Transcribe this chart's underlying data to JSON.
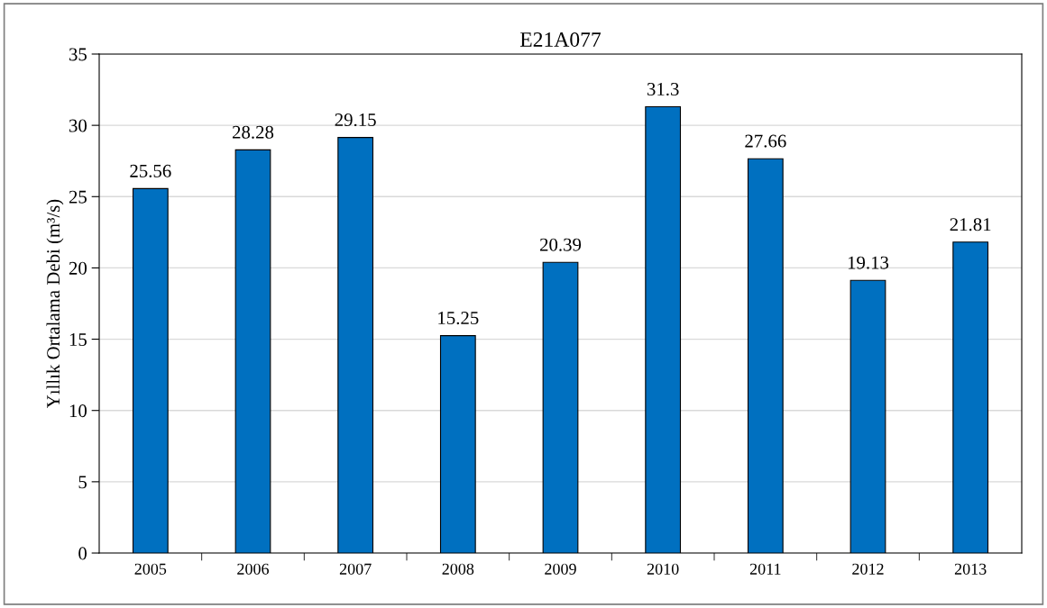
{
  "chart_data": {
    "type": "bar",
    "title": "E21A077",
    "ylabel": "Yıllık Ortalama Debi (m³/s)",
    "categories": [
      "2005",
      "2006",
      "2007",
      "2008",
      "2009",
      "2010",
      "2011",
      "2012",
      "2013"
    ],
    "values": [
      25.56,
      28.28,
      29.15,
      15.25,
      20.39,
      31.3,
      27.66,
      19.13,
      21.81
    ],
    "color": "#0070c0",
    "data_labels": true,
    "grid": "y",
    "ylim": [
      0,
      35
    ],
    "yticks": [
      0,
      5,
      10,
      15,
      20,
      25,
      30,
      35
    ]
  }
}
